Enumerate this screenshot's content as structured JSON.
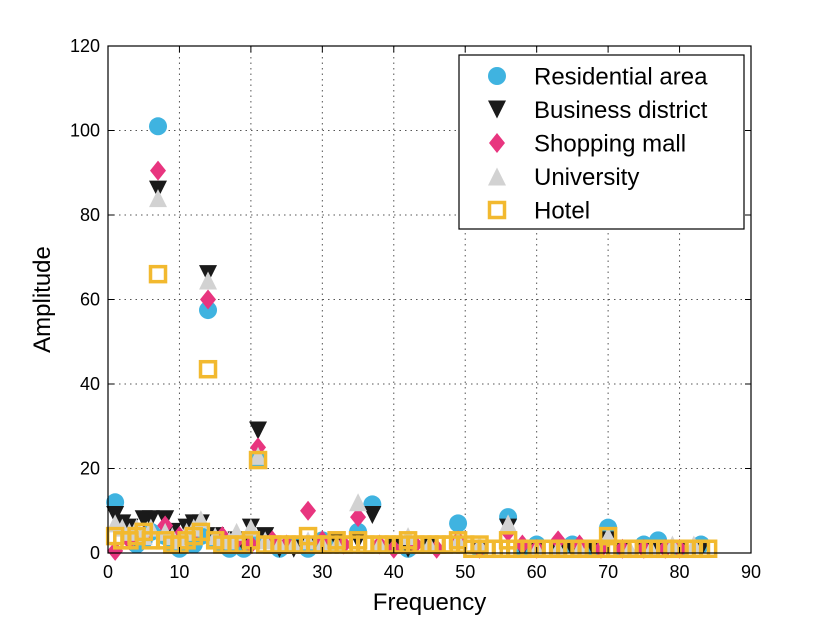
{
  "chart_data": {
    "type": "scatter",
    "title": "",
    "xlabel": "Frequency",
    "ylabel": "Amplitude",
    "xlim": [
      0,
      90
    ],
    "ylim": [
      0,
      120
    ],
    "xticks": [
      0,
      10,
      20,
      30,
      40,
      50,
      60,
      70,
      80,
      90
    ],
    "yticks": [
      0,
      20,
      40,
      60,
      80,
      100,
      120
    ],
    "grid": true,
    "legend_position": "top-right",
    "series": [
      {
        "name": "Residential area",
        "marker": "circle",
        "color": "#3fb3e0",
        "x": [
          1,
          2,
          3,
          4,
          5,
          6,
          7,
          8,
          9,
          10,
          11,
          12,
          13,
          14,
          15,
          16,
          17,
          18,
          19,
          20,
          21,
          22,
          24,
          26,
          28,
          30,
          32,
          35,
          37,
          40,
          42,
          45,
          49,
          52,
          56,
          58,
          60,
          63,
          65,
          68,
          70,
          72,
          75,
          77,
          80,
          83
        ],
        "y": [
          12,
          6,
          4,
          2,
          3,
          5,
          101,
          4,
          2,
          1,
          3,
          2,
          4,
          57.5,
          3,
          2,
          1,
          2,
          1,
          3,
          22,
          3,
          1,
          2,
          1,
          3,
          2,
          5,
          11.5,
          2,
          1,
          2,
          7,
          1,
          8.5,
          1,
          2,
          1,
          2,
          1,
          6,
          1,
          2,
          3,
          1,
          2
        ]
      },
      {
        "name": "Business district",
        "marker": "triangle-down",
        "color": "#1a1a1a",
        "x": [
          1,
          2,
          3,
          4,
          5,
          6,
          7,
          8,
          9,
          10,
          11,
          12,
          13,
          14,
          15,
          16,
          17,
          18,
          19,
          20,
          21,
          22,
          24,
          26,
          28,
          30,
          32,
          35,
          37,
          40,
          42,
          45,
          49,
          52,
          56,
          58,
          60,
          63,
          65,
          68,
          70,
          72,
          75,
          77,
          80,
          83
        ],
        "y": [
          9,
          7,
          6,
          3,
          8,
          8,
          86,
          8,
          5,
          3,
          6,
          7,
          7,
          66,
          4,
          2,
          2,
          3,
          2,
          6,
          29,
          4,
          1,
          1,
          2,
          2,
          3,
          3,
          9,
          2,
          1,
          2,
          2,
          1,
          6,
          1,
          1,
          1,
          1,
          1,
          3,
          1,
          1,
          1,
          1,
          1
        ]
      },
      {
        "name": "Shopping mall",
        "marker": "diamond",
        "color": "#e8357f",
        "x": [
          1,
          3,
          5,
          7,
          8,
          10,
          12,
          14,
          16,
          18,
          20,
          21,
          23,
          25,
          28,
          30,
          33,
          35,
          38,
          40,
          43,
          46,
          49,
          52,
          56,
          58,
          60,
          63,
          66,
          69,
          72,
          75,
          78,
          80
        ],
        "y": [
          0.5,
          3,
          4,
          90.5,
          6.5,
          4,
          5,
          60,
          4,
          3,
          2,
          25,
          3,
          2,
          10,
          3,
          2,
          8.5,
          2,
          1,
          2,
          1,
          3,
          1,
          5,
          2,
          1,
          3,
          2,
          1,
          1,
          1,
          1,
          1
        ]
      },
      {
        "name": "University",
        "marker": "triangle-up",
        "color": "#d2d2d2",
        "x": [
          1,
          2,
          3,
          4,
          5,
          6,
          7,
          8,
          9,
          10,
          11,
          12,
          13,
          14,
          15,
          16,
          17,
          18,
          20,
          21,
          22,
          24,
          26,
          28,
          30,
          32,
          35,
          38,
          42,
          45,
          49,
          52,
          56,
          60,
          63,
          66,
          70,
          73,
          76,
          79,
          82
        ],
        "y": [
          7,
          6,
          5,
          6,
          4,
          6,
          84,
          5,
          4,
          3,
          5,
          6,
          8,
          64.5,
          4,
          3,
          3,
          5,
          6,
          23,
          3,
          2,
          2,
          3,
          2,
          2,
          12,
          2,
          4,
          2,
          3,
          2,
          7,
          1,
          1,
          1,
          4,
          1,
          1,
          2,
          2
        ]
      },
      {
        "name": "Hotel",
        "marker": "square",
        "color": "#f2b92f",
        "x": [
          1,
          2,
          3,
          4,
          5,
          6,
          7,
          8,
          9,
          10,
          11,
          12,
          13,
          14,
          15,
          16,
          17,
          18,
          19,
          20,
          21,
          22,
          23,
          24,
          25,
          26,
          27,
          28,
          29,
          30,
          31,
          32,
          33,
          34,
          35,
          36,
          37,
          38,
          39,
          40,
          41,
          42,
          43,
          44,
          45,
          46,
          47,
          48,
          49,
          50,
          51,
          52,
          53,
          54,
          55,
          56,
          57,
          58,
          59,
          60,
          61,
          62,
          63,
          64,
          65,
          66,
          67,
          68,
          69,
          70,
          71,
          72,
          73,
          74,
          75,
          76,
          77,
          78,
          79,
          80,
          81,
          82,
          83,
          84
        ],
        "y": [
          4,
          3,
          3,
          4,
          5,
          3,
          66,
          3,
          2,
          2,
          3,
          4,
          5,
          43.5,
          3,
          2,
          2,
          2,
          2,
          3,
          22,
          2,
          2,
          2,
          2,
          2,
          2,
          4,
          2,
          2,
          2,
          3,
          2,
          2,
          3,
          2,
          2,
          2,
          2,
          2,
          2,
          3,
          2,
          2,
          2,
          2,
          2,
          2,
          3,
          2,
          1,
          2,
          1,
          1,
          1,
          3,
          1,
          1,
          1,
          1,
          1,
          1,
          1,
          1,
          1,
          1,
          1,
          1,
          1,
          4,
          1,
          1,
          1,
          1,
          1,
          1,
          1,
          1,
          1,
          1,
          1,
          1,
          1,
          1
        ]
      }
    ]
  }
}
